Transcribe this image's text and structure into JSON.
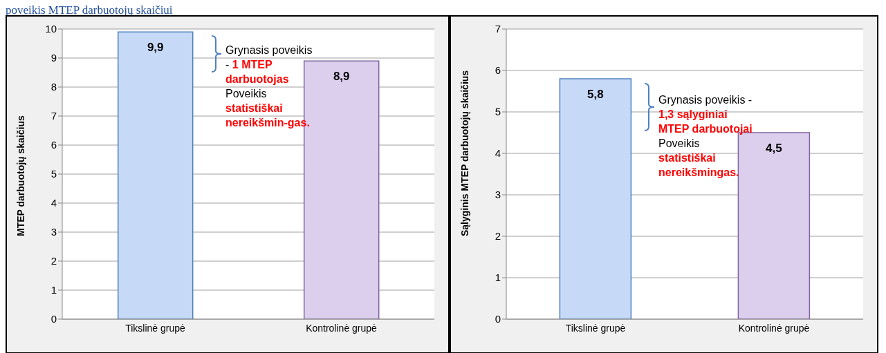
{
  "chart_data": [
    {
      "type": "bar",
      "title": "poveikis MTEP darbuotojų skaičiui",
      "ylabel": "MTEP darbuotojų  skaičius",
      "categories": [
        "Tikslinė grupė",
        "Kontrolinė grupė"
      ],
      "values": [
        9.9,
        8.9
      ],
      "colors": [
        "#c6d9f7",
        "#dccfee"
      ],
      "value_labels": [
        "9,9",
        "8,9"
      ],
      "ylim": [
        0,
        10
      ],
      "yticks": [
        0,
        1,
        2,
        3,
        4,
        5,
        6,
        7,
        8,
        9,
        10
      ],
      "grid": "y",
      "annotations": [
        "Grynasis poveikis  -",
        "1 MTEP darbuotojas",
        "Poveikis",
        "statistiškai nereikšmin-gas."
      ]
    },
    {
      "type": "bar",
      "ylabel": "Sąlyginis MTEP darbuotojų skaičius",
      "categories": [
        "Tikslinė grupė",
        "Kontrolinė grupė"
      ],
      "values": [
        5.8,
        4.5
      ],
      "colors": [
        "#c6d9f7",
        "#dccfee"
      ],
      "value_labels": [
        "5,8",
        "4,5"
      ],
      "ylim": [
        0,
        7
      ],
      "yticks": [
        0,
        1,
        2,
        3,
        4,
        5,
        6,
        7
      ],
      "grid": "y",
      "annotations": [
        "Grynasis poveikis -",
        "1,3 sąlyginiai MTEP darbuotojai",
        "Poveikis",
        "statistiškai nereikšmingas."
      ]
    }
  ]
}
